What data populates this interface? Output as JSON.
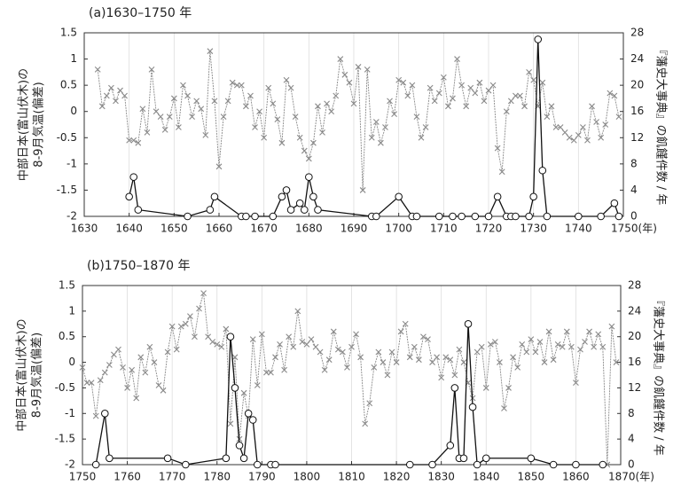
{
  "chart_data": [
    {
      "type": "line",
      "title": "(a)1630–1750 年",
      "ylabel": [
        "中部日本(富山伏木)の",
        "8-9月気温(偏差)"
      ],
      "y2label": "『藩史大事典』の飢饉件数 / 年",
      "xlim": [
        1630,
        1750
      ],
      "xticks": [
        1630,
        1640,
        1650,
        1660,
        1670,
        1680,
        1690,
        1700,
        1710,
        1720,
        1730,
        1740,
        {
          "value": 1750,
          "label": "1750(年)"
        }
      ],
      "ylim": [
        -2,
        1.5
      ],
      "yticks": [
        -2,
        -1.5,
        -1,
        -0.5,
        0,
        0.5,
        1,
        1.5
      ],
      "y2lim": [
        0,
        28
      ],
      "y2ticks": [
        0,
        4,
        8,
        12,
        16,
        20,
        24,
        28
      ],
      "grid": true,
      "series": [
        {
          "color": "#8a8a8a",
          "marker": "x",
          "x": [
            1633,
            1634,
            1635,
            1636,
            1637,
            1638,
            1639,
            1640,
            1641,
            1642,
            1643,
            1644,
            1645,
            1646,
            1647,
            1648,
            1649,
            1650,
            1651,
            1652,
            1653,
            1654,
            1655,
            1656,
            1657,
            1658,
            1659,
            1660,
            1661,
            1662,
            1663,
            1664,
            1665,
            1666,
            1667,
            1668,
            1669,
            1670,
            1671,
            1672,
            1673,
            1674,
            1675,
            1676,
            1677,
            1678,
            1679,
            1680,
            1681,
            1682,
            1683,
            1684,
            1685,
            1686,
            1687,
            1688,
            1689,
            1690,
            1691,
            1692,
            1693,
            1694,
            1695,
            1696,
            1697,
            1698,
            1699,
            1700,
            1701,
            1702,
            1703,
            1704,
            1705,
            1706,
            1707,
            1708,
            1709,
            1710,
            1711,
            1712,
            1713,
            1714,
            1715,
            1716,
            1717,
            1718,
            1719,
            1720,
            1721,
            1722,
            1723,
            1724,
            1725,
            1726,
            1727,
            1728,
            1729,
            1730,
            1731,
            1732,
            1733,
            1734,
            1735,
            1736,
            1737,
            1738,
            1739,
            1740,
            1741,
            1742,
            1743,
            1744,
            1745,
            1746,
            1747,
            1748,
            1749
          ],
          "values": [
            0.8,
            0.1,
            0.3,
            0.45,
            0.2,
            0.4,
            0.3,
            -0.55,
            -0.55,
            -0.6,
            0.05,
            -0.4,
            0.8,
            0.0,
            -0.1,
            -0.35,
            -0.1,
            0.25,
            -0.3,
            0.5,
            0.3,
            -0.1,
            0.2,
            0.05,
            -0.45,
            1.15,
            0.2,
            -1.05,
            -0.1,
            0.2,
            0.55,
            0.5,
            0.5,
            0.1,
            0.3,
            -0.3,
            0.0,
            -0.5,
            0.45,
            0.15,
            -0.15,
            -0.6,
            0.6,
            0.45,
            -0.1,
            -0.5,
            -0.75,
            -0.9,
            -0.6,
            0.1,
            -0.4,
            0.15,
            0.0,
            0.3,
            1.0,
            0.7,
            0.55,
            0.15,
            0.85,
            -1.5,
            0.8,
            -0.5,
            -0.2,
            -0.6,
            -0.3,
            0.2,
            -0.05,
            0.6,
            0.55,
            0.3,
            0.5,
            -0.1,
            -0.5,
            -0.3,
            0.45,
            0.2,
            0.35,
            0.65,
            0.1,
            0.25,
            1.0,
            0.5,
            0.1,
            0.45,
            0.35,
            0.55,
            0.2,
            0.4,
            0.5,
            -0.7,
            -1.15,
            0.0,
            0.2,
            0.3,
            0.3,
            0.1,
            0.75,
            0.6,
            0.1,
            0.55,
            -0.1,
            0.1,
            -0.3,
            -0.3,
            -0.4,
            -0.5,
            -0.55,
            -0.45,
            -0.3,
            -0.55,
            0.1,
            -0.2,
            -0.5,
            -0.25,
            0.35,
            0.3,
            -0.1
          ]
        },
        {
          "color": "#111111",
          "marker": "o",
          "axis": "y2",
          "x": [
            1640,
            1641,
            1642,
            1653,
            1658,
            1659,
            1665,
            1666,
            1668,
            1672,
            1674,
            1675,
            1676,
            1678,
            1679,
            1680,
            1681,
            1682,
            1694,
            1695,
            1700,
            1703,
            1704,
            1709,
            1712,
            1714,
            1717,
            1720,
            1722,
            1724,
            1725,
            1726,
            1729,
            1730,
            1731,
            1732,
            1733,
            1740,
            1745,
            1748,
            1749
          ],
          "values": [
            3,
            6,
            1,
            0,
            1,
            3,
            0,
            0,
            0,
            0,
            3,
            4,
            1,
            2,
            1,
            6,
            3,
            1,
            0,
            0,
            3,
            0,
            0,
            0,
            0,
            0,
            0,
            0,
            3,
            0,
            0,
            0,
            0,
            3,
            27,
            7,
            0,
            0,
            0,
            2,
            0
          ]
        }
      ]
    },
    {
      "type": "line",
      "title": "(b)1750–1870 年",
      "ylabel": [
        "中部日本(富山伏木)の",
        "8-9月気温(偏差)"
      ],
      "y2label": "『藩史大事典』の飢饉件数 / 年",
      "xlim": [
        1750,
        1870
      ],
      "xticks": [
        1750,
        1760,
        1770,
        1780,
        1790,
        1800,
        1810,
        1820,
        1830,
        1840,
        1850,
        1860,
        {
          "value": 1870,
          "label": "1870(年)"
        }
      ],
      "ylim": [
        -2,
        1.5
      ],
      "yticks": [
        -2,
        -1.5,
        -1,
        -0.5,
        0,
        0.5,
        1,
        1.5
      ],
      "y2lim": [
        0,
        28
      ],
      "y2ticks": [
        0,
        4,
        8,
        12,
        16,
        20,
        24,
        28
      ],
      "grid": true,
      "series": [
        {
          "color": "#8a8a8a",
          "marker": "x",
          "x": [
            1750,
            1751,
            1752,
            1753,
            1754,
            1755,
            1756,
            1757,
            1758,
            1759,
            1760,
            1761,
            1762,
            1763,
            1764,
            1765,
            1766,
            1767,
            1768,
            1769,
            1770,
            1771,
            1772,
            1773,
            1774,
            1775,
            1776,
            1777,
            1778,
            1779,
            1780,
            1781,
            1782,
            1783,
            1784,
            1785,
            1786,
            1787,
            1788,
            1789,
            1790,
            1791,
            1792,
            1793,
            1794,
            1795,
            1796,
            1797,
            1798,
            1799,
            1800,
            1801,
            1802,
            1803,
            1804,
            1805,
            1806,
            1807,
            1808,
            1809,
            1810,
            1811,
            1812,
            1813,
            1814,
            1815,
            1816,
            1817,
            1818,
            1819,
            1820,
            1821,
            1822,
            1823,
            1824,
            1825,
            1826,
            1827,
            1828,
            1829,
            1830,
            1831,
            1832,
            1833,
            1834,
            1835,
            1836,
            1837,
            1838,
            1839,
            1840,
            1841,
            1842,
            1843,
            1844,
            1845,
            1846,
            1847,
            1848,
            1849,
            1850,
            1851,
            1852,
            1853,
            1854,
            1855,
            1856,
            1857,
            1858,
            1859,
            1860,
            1861,
            1862,
            1863,
            1864,
            1865,
            1866,
            1867,
            1868,
            1869
          ],
          "values": [
            -0.1,
            -0.4,
            -0.4,
            -1.05,
            -0.35,
            -0.2,
            -0.05,
            0.15,
            0.25,
            -0.1,
            -0.5,
            -0.15,
            -0.7,
            0.1,
            -0.2,
            0.3,
            0.0,
            -0.45,
            -0.55,
            0.2,
            0.7,
            0.25,
            0.7,
            0.75,
            0.9,
            0.5,
            1.05,
            1.35,
            0.5,
            0.4,
            0.35,
            0.3,
            0.65,
            -1.2,
            0.1,
            -1.5,
            -0.6,
            -1.05,
            0.45,
            -0.45,
            0.55,
            -0.2,
            -0.2,
            0.1,
            0.35,
            -0.15,
            0.5,
            0.3,
            1.0,
            0.4,
            0.35,
            0.45,
            0.3,
            0.2,
            -0.15,
            0.05,
            0.6,
            0.25,
            0.2,
            -0.1,
            0.3,
            0.55,
            0.1,
            -1.2,
            -0.8,
            -0.1,
            0.2,
            0.0,
            -0.25,
            0.2,
            0.0,
            0.6,
            0.75,
            0.1,
            0.3,
            0.05,
            0.5,
            0.45,
            0.0,
            0.1,
            -0.3,
            0.1,
            0.05,
            -0.25,
            0.25,
            0.0,
            -0.4,
            -0.7,
            0.2,
            0.3,
            -0.5,
            0.35,
            0.4,
            0.0,
            -0.9,
            -0.5,
            0.1,
            -0.1,
            0.35,
            0.2,
            0.45,
            0.2,
            0.4,
            0.0,
            0.6,
            0.05,
            0.35,
            0.3,
            0.6,
            0.3,
            -0.4,
            0.25,
            0.4,
            0.6,
            0.3,
            0.55,
            0.3,
            -2.0,
            0.7,
            0.0
          ]
        },
        {
          "color": "#111111",
          "marker": "o",
          "axis": "y2",
          "x": [
            1753,
            1755,
            1756,
            1769,
            1773,
            1782,
            1783,
            1784,
            1785,
            1786,
            1787,
            1788,
            1789,
            1792,
            1793,
            1823,
            1828,
            1832,
            1833,
            1834,
            1835,
            1836,
            1837,
            1838,
            1840,
            1850,
            1855,
            1860,
            1866
          ],
          "values": [
            0,
            8,
            1,
            1,
            0,
            1,
            20,
            12,
            3,
            1,
            8,
            7,
            0,
            0,
            0,
            0,
            0,
            3,
            12,
            1,
            1,
            22,
            9,
            0,
            1,
            1,
            0,
            0,
            0
          ]
        }
      ]
    }
  ]
}
